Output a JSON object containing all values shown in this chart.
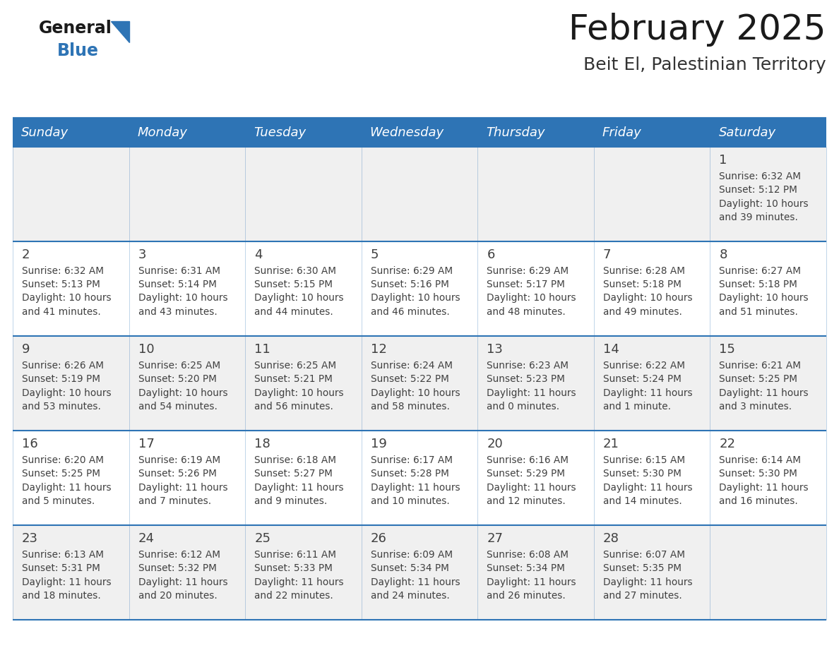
{
  "title": "February 2025",
  "subtitle": "Beit El, Palestinian Territory",
  "days_of_week": [
    "Sunday",
    "Monday",
    "Tuesday",
    "Wednesday",
    "Thursday",
    "Friday",
    "Saturday"
  ],
  "header_bg": "#2E74B5",
  "header_text_color": "#FFFFFF",
  "cell_bg_even": "#FFFFFF",
  "cell_bg_odd": "#F0F0F0",
  "divider_color": "#2E74B5",
  "text_color": "#404040",
  "day_num_color": "#404040",
  "title_color": "#1a1a1a",
  "subtitle_color": "#333333",
  "logo_general_color": "#1a1a1a",
  "logo_blue_color": "#2E74B5",
  "calendar_data": [
    [
      null,
      null,
      null,
      null,
      null,
      null,
      {
        "day": 1,
        "sunrise": "6:32 AM",
        "sunset": "5:12 PM",
        "dl1": "Daylight: 10 hours",
        "dl2": "and 39 minutes."
      }
    ],
    [
      {
        "day": 2,
        "sunrise": "6:32 AM",
        "sunset": "5:13 PM",
        "dl1": "Daylight: 10 hours",
        "dl2": "and 41 minutes."
      },
      {
        "day": 3,
        "sunrise": "6:31 AM",
        "sunset": "5:14 PM",
        "dl1": "Daylight: 10 hours",
        "dl2": "and 43 minutes."
      },
      {
        "day": 4,
        "sunrise": "6:30 AM",
        "sunset": "5:15 PM",
        "dl1": "Daylight: 10 hours",
        "dl2": "and 44 minutes."
      },
      {
        "day": 5,
        "sunrise": "6:29 AM",
        "sunset": "5:16 PM",
        "dl1": "Daylight: 10 hours",
        "dl2": "and 46 minutes."
      },
      {
        "day": 6,
        "sunrise": "6:29 AM",
        "sunset": "5:17 PM",
        "dl1": "Daylight: 10 hours",
        "dl2": "and 48 minutes."
      },
      {
        "day": 7,
        "sunrise": "6:28 AM",
        "sunset": "5:18 PM",
        "dl1": "Daylight: 10 hours",
        "dl2": "and 49 minutes."
      },
      {
        "day": 8,
        "sunrise": "6:27 AM",
        "sunset": "5:18 PM",
        "dl1": "Daylight: 10 hours",
        "dl2": "and 51 minutes."
      }
    ],
    [
      {
        "day": 9,
        "sunrise": "6:26 AM",
        "sunset": "5:19 PM",
        "dl1": "Daylight: 10 hours",
        "dl2": "and 53 minutes."
      },
      {
        "day": 10,
        "sunrise": "6:25 AM",
        "sunset": "5:20 PM",
        "dl1": "Daylight: 10 hours",
        "dl2": "and 54 minutes."
      },
      {
        "day": 11,
        "sunrise": "6:25 AM",
        "sunset": "5:21 PM",
        "dl1": "Daylight: 10 hours",
        "dl2": "and 56 minutes."
      },
      {
        "day": 12,
        "sunrise": "6:24 AM",
        "sunset": "5:22 PM",
        "dl1": "Daylight: 10 hours",
        "dl2": "and 58 minutes."
      },
      {
        "day": 13,
        "sunrise": "6:23 AM",
        "sunset": "5:23 PM",
        "dl1": "Daylight: 11 hours",
        "dl2": "and 0 minutes."
      },
      {
        "day": 14,
        "sunrise": "6:22 AM",
        "sunset": "5:24 PM",
        "dl1": "Daylight: 11 hours",
        "dl2": "and 1 minute."
      },
      {
        "day": 15,
        "sunrise": "6:21 AM",
        "sunset": "5:25 PM",
        "dl1": "Daylight: 11 hours",
        "dl2": "and 3 minutes."
      }
    ],
    [
      {
        "day": 16,
        "sunrise": "6:20 AM",
        "sunset": "5:25 PM",
        "dl1": "Daylight: 11 hours",
        "dl2": "and 5 minutes."
      },
      {
        "day": 17,
        "sunrise": "6:19 AM",
        "sunset": "5:26 PM",
        "dl1": "Daylight: 11 hours",
        "dl2": "and 7 minutes."
      },
      {
        "day": 18,
        "sunrise": "6:18 AM",
        "sunset": "5:27 PM",
        "dl1": "Daylight: 11 hours",
        "dl2": "and 9 minutes."
      },
      {
        "day": 19,
        "sunrise": "6:17 AM",
        "sunset": "5:28 PM",
        "dl1": "Daylight: 11 hours",
        "dl2": "and 10 minutes."
      },
      {
        "day": 20,
        "sunrise": "6:16 AM",
        "sunset": "5:29 PM",
        "dl1": "Daylight: 11 hours",
        "dl2": "and 12 minutes."
      },
      {
        "day": 21,
        "sunrise": "6:15 AM",
        "sunset": "5:30 PM",
        "dl1": "Daylight: 11 hours",
        "dl2": "and 14 minutes."
      },
      {
        "day": 22,
        "sunrise": "6:14 AM",
        "sunset": "5:30 PM",
        "dl1": "Daylight: 11 hours",
        "dl2": "and 16 minutes."
      }
    ],
    [
      {
        "day": 23,
        "sunrise": "6:13 AM",
        "sunset": "5:31 PM",
        "dl1": "Daylight: 11 hours",
        "dl2": "and 18 minutes."
      },
      {
        "day": 24,
        "sunrise": "6:12 AM",
        "sunset": "5:32 PM",
        "dl1": "Daylight: 11 hours",
        "dl2": "and 20 minutes."
      },
      {
        "day": 25,
        "sunrise": "6:11 AM",
        "sunset": "5:33 PM",
        "dl1": "Daylight: 11 hours",
        "dl2": "and 22 minutes."
      },
      {
        "day": 26,
        "sunrise": "6:09 AM",
        "sunset": "5:34 PM",
        "dl1": "Daylight: 11 hours",
        "dl2": "and 24 minutes."
      },
      {
        "day": 27,
        "sunrise": "6:08 AM",
        "sunset": "5:34 PM",
        "dl1": "Daylight: 11 hours",
        "dl2": "and 26 minutes."
      },
      {
        "day": 28,
        "sunrise": "6:07 AM",
        "sunset": "5:35 PM",
        "dl1": "Daylight: 11 hours",
        "dl2": "and 27 minutes."
      },
      null
    ]
  ]
}
